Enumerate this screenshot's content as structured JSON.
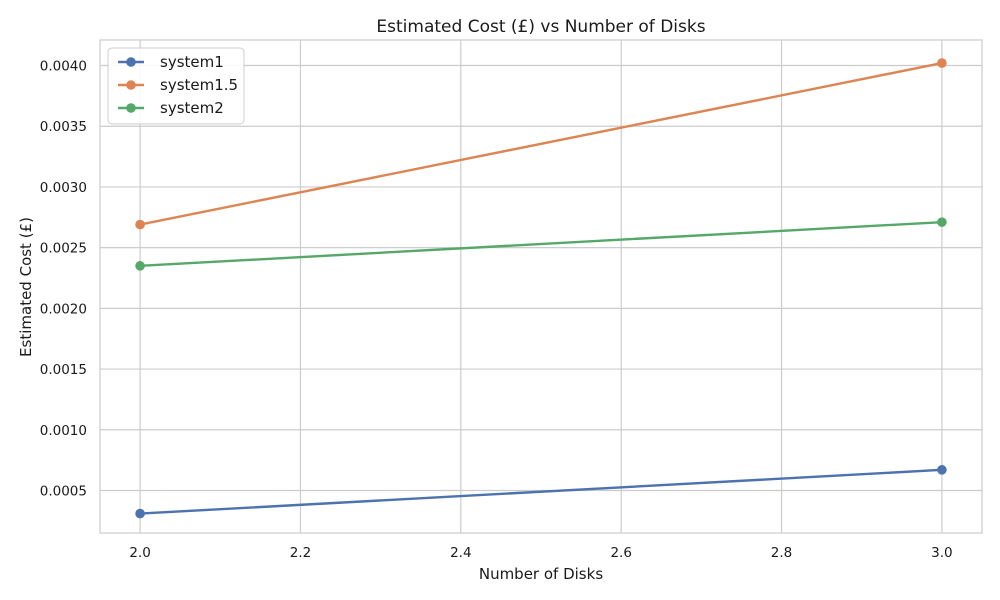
{
  "chart_data": {
    "type": "line",
    "title": "Estimated Cost (£) vs Number of Disks",
    "xlabel": "Number of Disks",
    "ylabel": "Estimated Cost (£)",
    "xlim": [
      1.95,
      3.05
    ],
    "ylim": [
      0.00015,
      0.00421
    ],
    "x_ticks": [
      2.0,
      2.2,
      2.4,
      2.6,
      2.8,
      3.0
    ],
    "x_tick_labels": [
      "2.0",
      "2.2",
      "2.4",
      "2.6",
      "2.8",
      "3.0"
    ],
    "y_ticks": [
      0.0005,
      0.001,
      0.0015,
      0.002,
      0.0025,
      0.003,
      0.0035,
      0.004
    ],
    "y_tick_labels": [
      "0.0005",
      "0.0010",
      "0.0015",
      "0.0020",
      "0.0025",
      "0.0030",
      "0.0035",
      "0.0040"
    ],
    "grid": true,
    "legend_position": "top-left",
    "series": [
      {
        "name": "system1",
        "color": "#4c72b0",
        "x": [
          2.0,
          3.0
        ],
        "y": [
          0.00031,
          0.00067
        ]
      },
      {
        "name": "system1.5",
        "color": "#dd8452",
        "x": [
          2.0,
          3.0
        ],
        "y": [
          0.00269,
          0.00402
        ]
      },
      {
        "name": "system2",
        "color": "#55a868",
        "x": [
          2.0,
          3.0
        ],
        "y": [
          0.00235,
          0.00271
        ]
      }
    ]
  }
}
